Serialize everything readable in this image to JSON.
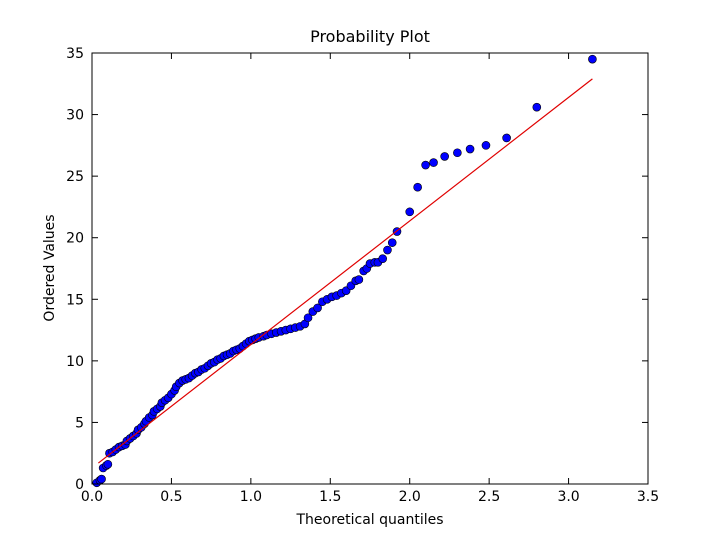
{
  "chart_data": {
    "type": "scatter",
    "title": "Probability Plot",
    "xlabel": "Theoretical quantiles",
    "ylabel": "Ordered Values",
    "x": [
      0.03,
      0.05,
      0.06,
      0.07,
      0.09,
      0.1,
      0.11,
      0.13,
      0.15,
      0.17,
      0.19,
      0.21,
      0.22,
      0.24,
      0.26,
      0.28,
      0.29,
      0.31,
      0.33,
      0.34,
      0.36,
      0.38,
      0.39,
      0.41,
      0.43,
      0.44,
      0.46,
      0.48,
      0.5,
      0.52,
      0.53,
      0.55,
      0.57,
      0.59,
      0.61,
      0.63,
      0.65,
      0.67,
      0.69,
      0.71,
      0.73,
      0.75,
      0.77,
      0.79,
      0.81,
      0.83,
      0.85,
      0.87,
      0.89,
      0.91,
      0.93,
      0.95,
      0.97,
      0.99,
      1.01,
      1.03,
      1.05,
      1.08,
      1.1,
      1.13,
      1.16,
      1.19,
      1.22,
      1.25,
      1.28,
      1.31,
      1.34,
      1.36,
      1.39,
      1.42,
      1.45,
      1.48,
      1.51,
      1.54,
      1.57,
      1.6,
      1.63,
      1.66,
      1.68,
      1.71,
      1.73,
      1.75,
      1.78,
      1.8,
      1.83,
      1.86,
      1.89,
      1.92,
      2.0,
      2.05,
      2.1,
      2.15,
      2.22,
      2.3,
      2.38,
      2.48,
      2.61,
      2.8,
      3.15
    ],
    "values": [
      0.1,
      0.3,
      0.4,
      1.3,
      1.5,
      1.6,
      2.5,
      2.6,
      2.8,
      3.0,
      3.1,
      3.2,
      3.5,
      3.7,
      3.9,
      4.1,
      4.4,
      4.6,
      4.9,
      5.1,
      5.4,
      5.6,
      5.9,
      6.1,
      6.3,
      6.6,
      6.8,
      7.0,
      7.3,
      7.6,
      7.9,
      8.2,
      8.4,
      8.5,
      8.6,
      8.8,
      9.0,
      9.1,
      9.3,
      9.4,
      9.6,
      9.8,
      9.9,
      10.1,
      10.2,
      10.4,
      10.5,
      10.6,
      10.8,
      10.9,
      11.0,
      11.2,
      11.4,
      11.6,
      11.7,
      11.8,
      11.9,
      12.0,
      12.1,
      12.2,
      12.3,
      12.4,
      12.5,
      12.6,
      12.7,
      12.8,
      13.0,
      13.5,
      14.0,
      14.3,
      14.8,
      15.0,
      15.2,
      15.3,
      15.5,
      15.7,
      16.1,
      16.5,
      16.6,
      17.3,
      17.5,
      17.9,
      18.0,
      18.0,
      18.3,
      19.0,
      19.6,
      20.5,
      22.1,
      24.1,
      25.9,
      26.1,
      26.6,
      26.9,
      27.2,
      27.5,
      28.1,
      30.6,
      34.5
    ],
    "color": "#0000ff",
    "fit_line": {
      "x": [
        0.04,
        3.15
      ],
      "values": [
        1.7,
        32.9
      ],
      "color": "#e00000"
    },
    "xlim": [
      0,
      3.5
    ],
    "xticks": [
      {
        "value": 0,
        "label": "0.0"
      },
      0.5,
      {
        "value": 1,
        "label": "1.0"
      },
      1.5,
      {
        "value": 2,
        "label": "2.0"
      },
      2.5,
      {
        "value": 3,
        "label": "3.0"
      },
      3.5
    ],
    "ylim": [
      0,
      35
    ],
    "yticks": [
      0,
      5,
      10,
      15,
      20,
      25,
      30,
      35
    ]
  }
}
